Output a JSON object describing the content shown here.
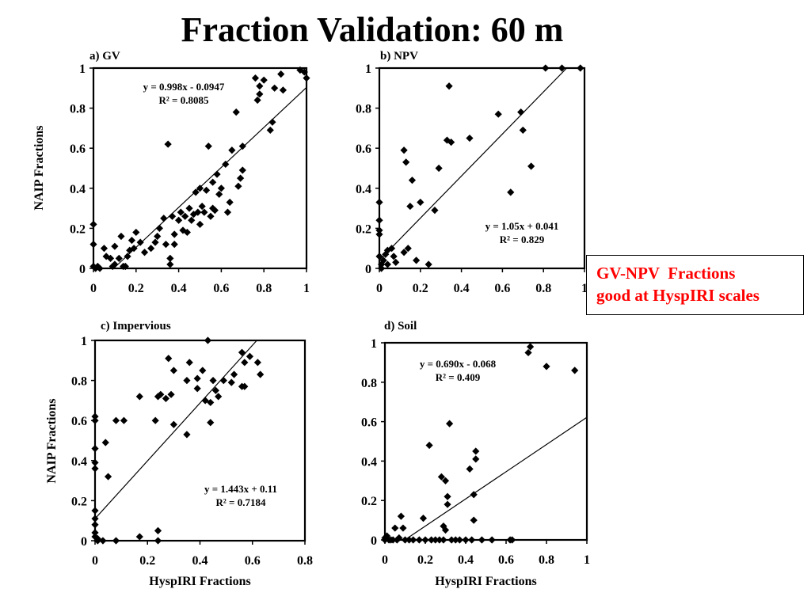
{
  "title": "Fraction Validation: 60 m",
  "callout": {
    "line1": "GV-NPV  Fractions",
    "line2": "good at HyspIRI scales",
    "color": "#ff0000"
  },
  "chart_data": [
    {
      "type": "scatter",
      "title": "a) GV",
      "xlabel": "",
      "ylabel": "NAIP Fractions",
      "xlim": [
        0,
        1
      ],
      "ylim": [
        0,
        1
      ],
      "xticks": [
        "0",
        "0.2",
        "0.4",
        "0.6",
        "0.8",
        "1"
      ],
      "yticks": [
        "0",
        "0.2",
        "0.4",
        "0.6",
        "0.8",
        "1"
      ],
      "grid": false,
      "trendline": {
        "slope": 0.998,
        "intercept": -0.0947
      },
      "equation": "y = 0.998x - 0.0947",
      "r2": "R² = 0.8085",
      "annotation_position": "top-center",
      "marker_color": "#000000",
      "points": [
        [
          0.0,
          0.22
        ],
        [
          0.0,
          0.12
        ],
        [
          0.0,
          0.01
        ],
        [
          0.01,
          0.0
        ],
        [
          0.02,
          0.01
        ],
        [
          0.03,
          0.0
        ],
        [
          0.05,
          0.1
        ],
        [
          0.06,
          0.06
        ],
        [
          0.08,
          0.05
        ],
        [
          0.09,
          0.01
        ],
        [
          0.1,
          0.11
        ],
        [
          0.1,
          0.02
        ],
        [
          0.12,
          0.05
        ],
        [
          0.13,
          0.16
        ],
        [
          0.14,
          0.01
        ],
        [
          0.15,
          0.01
        ],
        [
          0.16,
          0.06
        ],
        [
          0.17,
          0.09
        ],
        [
          0.18,
          0.14
        ],
        [
          0.19,
          0.1
        ],
        [
          0.2,
          0.18
        ],
        [
          0.22,
          0.13
        ],
        [
          0.24,
          0.08
        ],
        [
          0.27,
          0.1
        ],
        [
          0.29,
          0.13
        ],
        [
          0.3,
          0.16
        ],
        [
          0.31,
          0.2
        ],
        [
          0.33,
          0.25
        ],
        [
          0.34,
          0.12
        ],
        [
          0.35,
          0.62
        ],
        [
          0.36,
          0.05
        ],
        [
          0.36,
          0.02
        ],
        [
          0.37,
          0.26
        ],
        [
          0.38,
          0.17
        ],
        [
          0.38,
          0.12
        ],
        [
          0.4,
          0.24
        ],
        [
          0.41,
          0.28
        ],
        [
          0.42,
          0.19
        ],
        [
          0.43,
          0.26
        ],
        [
          0.44,
          0.18
        ],
        [
          0.45,
          0.3
        ],
        [
          0.46,
          0.24
        ],
        [
          0.47,
          0.27
        ],
        [
          0.48,
          0.38
        ],
        [
          0.49,
          0.28
        ],
        [
          0.5,
          0.4
        ],
        [
          0.5,
          0.22
        ],
        [
          0.51,
          0.31
        ],
        [
          0.52,
          0.28
        ],
        [
          0.53,
          0.39
        ],
        [
          0.54,
          0.61
        ],
        [
          0.55,
          0.26
        ],
        [
          0.56,
          0.43
        ],
        [
          0.56,
          0.3
        ],
        [
          0.57,
          0.29
        ],
        [
          0.58,
          0.47
        ],
        [
          0.59,
          0.37
        ],
        [
          0.6,
          0.4
        ],
        [
          0.62,
          0.52
        ],
        [
          0.63,
          0.28
        ],
        [
          0.64,
          0.33
        ],
        [
          0.65,
          0.59
        ],
        [
          0.67,
          0.78
        ],
        [
          0.68,
          0.41
        ],
        [
          0.69,
          0.45
        ],
        [
          0.7,
          0.49
        ],
        [
          0.7,
          0.61
        ],
        [
          0.76,
          0.95
        ],
        [
          0.77,
          0.84
        ],
        [
          0.78,
          0.91
        ],
        [
          0.78,
          0.87
        ],
        [
          0.8,
          0.94
        ],
        [
          0.83,
          0.69
        ],
        [
          0.84,
          0.73
        ],
        [
          0.85,
          0.9
        ],
        [
          0.88,
          0.97
        ],
        [
          0.89,
          0.89
        ],
        [
          0.97,
          0.99
        ],
        [
          0.99,
          0.98
        ],
        [
          1.0,
          0.95
        ]
      ]
    },
    {
      "type": "scatter",
      "title": "b) NPV",
      "xlabel": "",
      "ylabel": "",
      "xlim": [
        0,
        1
      ],
      "ylim": [
        0,
        1
      ],
      "xticks": [
        "0",
        "0.2",
        "0.4",
        "0.6",
        "0.8",
        "1"
      ],
      "yticks": [
        "0",
        "0.2",
        "0.4",
        "0.6",
        "0.8",
        "1"
      ],
      "grid": false,
      "trendline": {
        "slope": 1.05,
        "intercept": 0.041
      },
      "equation": "y = 1.05x + 0.041",
      "r2": "R² = 0.829",
      "annotation_position": "right-middle",
      "marker_color": "#000000",
      "points": [
        [
          0.0,
          0.33
        ],
        [
          0.0,
          0.24
        ],
        [
          0.0,
          0.19
        ],
        [
          0.0,
          0.17
        ],
        [
          0.0,
          0.06
        ],
        [
          0.01,
          0.02
        ],
        [
          0.01,
          0.0
        ],
        [
          0.02,
          0.04
        ],
        [
          0.03,
          0.07
        ],
        [
          0.04,
          0.02
        ],
        [
          0.04,
          0.09
        ],
        [
          0.06,
          0.1
        ],
        [
          0.07,
          0.06
        ],
        [
          0.08,
          0.03
        ],
        [
          0.12,
          0.08
        ],
        [
          0.12,
          0.59
        ],
        [
          0.13,
          0.53
        ],
        [
          0.14,
          0.1
        ],
        [
          0.15,
          0.31
        ],
        [
          0.16,
          0.44
        ],
        [
          0.18,
          0.04
        ],
        [
          0.2,
          0.33
        ],
        [
          0.24,
          0.02
        ],
        [
          0.27,
          0.29
        ],
        [
          0.29,
          0.5
        ],
        [
          0.33,
          0.64
        ],
        [
          0.34,
          0.91
        ],
        [
          0.35,
          0.63
        ],
        [
          0.44,
          0.65
        ],
        [
          0.58,
          0.77
        ],
        [
          0.64,
          0.38
        ],
        [
          0.69,
          0.78
        ],
        [
          0.7,
          0.69
        ],
        [
          0.74,
          0.51
        ],
        [
          0.81,
          1.0
        ],
        [
          0.89,
          1.0
        ],
        [
          0.98,
          1.0
        ]
      ]
    },
    {
      "type": "scatter",
      "title": "c) Impervious",
      "xlabel": "HyspIRI Fractions",
      "ylabel": "NAIP Fractions",
      "xlim": [
        0,
        0.8
      ],
      "ylim": [
        0,
        1
      ],
      "xticks": [
        "0",
        "0.2",
        "0.4",
        "0.6",
        "0.8"
      ],
      "yticks": [
        "0",
        "0.2",
        "0.4",
        "0.6",
        "0.8",
        "1"
      ],
      "grid": false,
      "trendline": {
        "slope": 1.443,
        "intercept": 0.11
      },
      "equation": "y = 1.443x + 0.11",
      "r2": "R² = 0.7184",
      "annotation_position": "bottom-right",
      "marker_color": "#000000",
      "points": [
        [
          0.0,
          0.62
        ],
        [
          0.0,
          0.6
        ],
        [
          0.0,
          0.46
        ],
        [
          0.0,
          0.39
        ],
        [
          0.0,
          0.36
        ],
        [
          0.0,
          0.15
        ],
        [
          0.0,
          0.11
        ],
        [
          0.0,
          0.08
        ],
        [
          0.0,
          0.04
        ],
        [
          0.0,
          0.02
        ],
        [
          0.01,
          0.01
        ],
        [
          0.01,
          0.0
        ],
        [
          0.03,
          0.0
        ],
        [
          0.04,
          0.49
        ],
        [
          0.05,
          0.32
        ],
        [
          0.08,
          0.6
        ],
        [
          0.08,
          0.0
        ],
        [
          0.11,
          0.6
        ],
        [
          0.17,
          0.72
        ],
        [
          0.17,
          0.02
        ],
        [
          0.23,
          0.6
        ],
        [
          0.24,
          0.72
        ],
        [
          0.24,
          0.05
        ],
        [
          0.24,
          0.0
        ],
        [
          0.25,
          0.73
        ],
        [
          0.27,
          0.71
        ],
        [
          0.28,
          0.91
        ],
        [
          0.29,
          0.73
        ],
        [
          0.3,
          0.58
        ],
        [
          0.3,
          0.85
        ],
        [
          0.35,
          0.53
        ],
        [
          0.35,
          0.8
        ],
        [
          0.36,
          0.89
        ],
        [
          0.39,
          0.81
        ],
        [
          0.39,
          0.76
        ],
        [
          0.41,
          0.85
        ],
        [
          0.42,
          0.7
        ],
        [
          0.43,
          1.0
        ],
        [
          0.44,
          0.59
        ],
        [
          0.44,
          0.69
        ],
        [
          0.45,
          0.8
        ],
        [
          0.46,
          0.75
        ],
        [
          0.47,
          0.72
        ],
        [
          0.49,
          0.8
        ],
        [
          0.52,
          0.79
        ],
        [
          0.53,
          0.83
        ],
        [
          0.56,
          0.94
        ],
        [
          0.56,
          0.77
        ],
        [
          0.57,
          0.77
        ],
        [
          0.57,
          0.89
        ],
        [
          0.59,
          0.92
        ],
        [
          0.62,
          0.89
        ],
        [
          0.63,
          0.83
        ]
      ]
    },
    {
      "type": "scatter",
      "title": "d) Soil",
      "xlabel": "HyspIRI Fractions",
      "ylabel": "",
      "xlim": [
        0,
        1
      ],
      "ylim": [
        0,
        1
      ],
      "xticks": [
        "0",
        "0.2",
        "0.4",
        "0.6",
        "0.8",
        "1"
      ],
      "yticks": [
        "0",
        "0.2",
        "0.4",
        "0.6",
        "0.8",
        "1"
      ],
      "grid": false,
      "trendline": {
        "slope": 0.69,
        "intercept": -0.068
      },
      "equation": "y = 0.690x - 0.068",
      "r2": "R² = 0.409",
      "annotation_position": "top-left",
      "marker_color": "#000000",
      "points": [
        [
          0.0,
          0.01
        ],
        [
          0.0,
          0.0
        ],
        [
          0.01,
          0.02
        ],
        [
          0.02,
          0.0
        ],
        [
          0.03,
          0.0
        ],
        [
          0.04,
          0.0
        ],
        [
          0.05,
          0.06
        ],
        [
          0.06,
          0.0
        ],
        [
          0.07,
          0.01
        ],
        [
          0.08,
          0.12
        ],
        [
          0.09,
          0.06
        ],
        [
          0.1,
          0.0
        ],
        [
          0.12,
          0.0
        ],
        [
          0.14,
          0.0
        ],
        [
          0.17,
          0.0
        ],
        [
          0.19,
          0.11
        ],
        [
          0.2,
          0.0
        ],
        [
          0.22,
          0.48
        ],
        [
          0.23,
          0.0
        ],
        [
          0.25,
          0.0
        ],
        [
          0.27,
          0.0
        ],
        [
          0.28,
          0.32
        ],
        [
          0.29,
          0.07
        ],
        [
          0.29,
          0.0
        ],
        [
          0.3,
          0.3
        ],
        [
          0.3,
          0.05
        ],
        [
          0.31,
          0.22
        ],
        [
          0.31,
          0.18
        ],
        [
          0.32,
          0.59
        ],
        [
          0.33,
          0.0
        ],
        [
          0.35,
          0.0
        ],
        [
          0.37,
          0.0
        ],
        [
          0.4,
          0.0
        ],
        [
          0.42,
          0.36
        ],
        [
          0.43,
          0.0
        ],
        [
          0.44,
          0.1
        ],
        [
          0.44,
          0.23
        ],
        [
          0.45,
          0.41
        ],
        [
          0.45,
          0.45
        ],
        [
          0.48,
          0.0
        ],
        [
          0.53,
          0.0
        ],
        [
          0.62,
          0.0
        ],
        [
          0.63,
          0.0
        ],
        [
          0.71,
          0.95
        ],
        [
          0.72,
          0.98
        ],
        [
          0.8,
          0.88
        ],
        [
          0.94,
          0.86
        ]
      ]
    }
  ]
}
